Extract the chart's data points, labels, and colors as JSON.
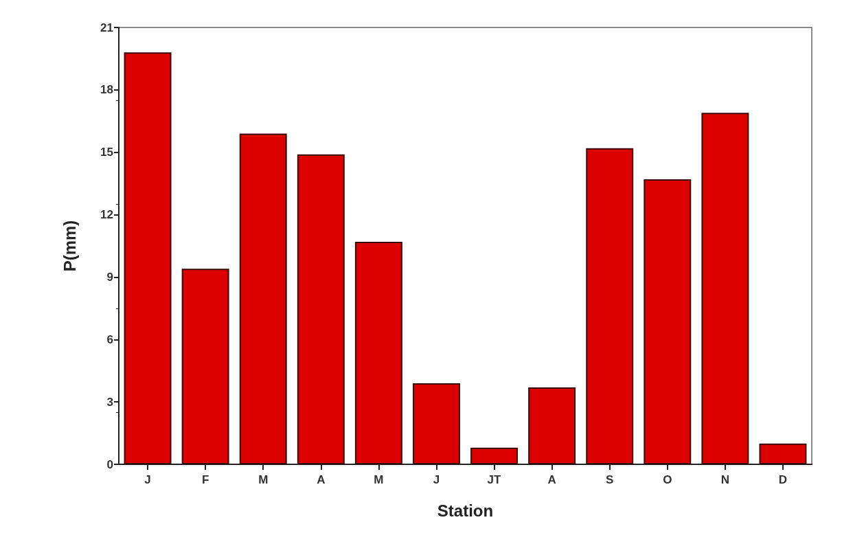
{
  "chart_data": {
    "type": "bar",
    "xlabel": "Station",
    "ylabel": "P(mm)",
    "categories": [
      "J",
      "F",
      "M",
      "A",
      "M",
      "J",
      "JT",
      "A",
      "S",
      "O",
      "N",
      "D"
    ],
    "values": [
      19.8,
      9.4,
      15.9,
      14.9,
      10.7,
      3.9,
      0.8,
      3.7,
      15.2,
      13.7,
      16.9,
      1.0
    ],
    "color": "#dd0000",
    "ylim": [
      0,
      21
    ],
    "yticks": [
      0,
      3,
      6,
      9,
      12,
      15,
      18,
      21
    ],
    "grid": false
  }
}
